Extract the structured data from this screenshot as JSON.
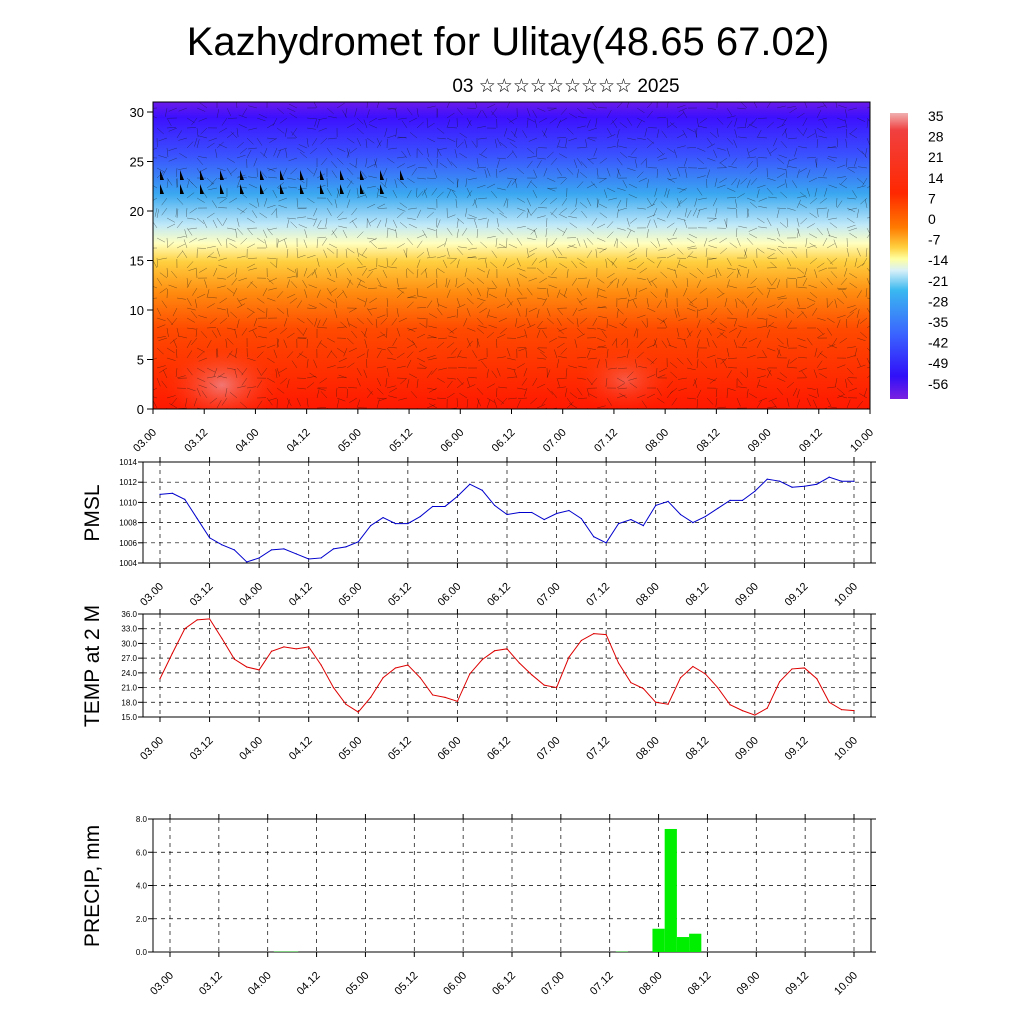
{
  "title": "Kazhydromet for Ulitay(48.65 67.02)",
  "subtitle": "03 ☆☆☆☆☆☆☆☆☆ 2025",
  "chart_data": [
    {
      "type": "heatmap",
      "name": "upper-air-temperature-section",
      "x_tick_labels": [
        "03.00",
        "03.12",
        "04.00",
        "04.12",
        "05.00",
        "05.12",
        "06.00",
        "06.12",
        "07.00",
        "07.12",
        "08.00",
        "08.12",
        "09.00",
        "09.12",
        "10.00"
      ],
      "ylim": [
        0,
        30
      ],
      "y_ticks": [
        0,
        5,
        10,
        15,
        20,
        25,
        30
      ],
      "colorbar_labels": [
        "35",
        "28",
        "21",
        "14",
        "7",
        "0",
        "-7",
        "-14",
        "-21",
        "-28",
        "-35",
        "-42",
        "-49",
        "-56"
      ],
      "colors": {
        "warm": "#ff2a00",
        "hot": "#f07070",
        "neutral": "#ffffc0",
        "cold": "#3aa8f0",
        "coldest": "#6a1ae8"
      }
    },
    {
      "type": "line",
      "ylabel": "PMSL",
      "ylim": [
        1004,
        1014
      ],
      "y_tick_labels": [
        "1004",
        "1006",
        "1008",
        "1010",
        "1012",
        "1014"
      ],
      "x_tick_labels": [
        "03.00",
        "03.12",
        "04.00",
        "04.12",
        "05.00",
        "05.12",
        "06.00",
        "06.12",
        "07.00",
        "07.12",
        "08.00",
        "08.12",
        "09.00",
        "09.12",
        "10.00"
      ],
      "x_step_hours": 3,
      "values": [
        1010.8,
        1010.9,
        1010.3,
        1008.4,
        1006.5,
        1005.8,
        1005.3,
        1004.1,
        1004.5,
        1005.3,
        1005.4,
        1004.9,
        1004.4,
        1004.5,
        1005.4,
        1005.6,
        1006.1,
        1007.7,
        1008.5,
        1007.9,
        1007.9,
        1008.6,
        1009.6,
        1009.6,
        1010.6,
        1011.8,
        1011.2,
        1009.7,
        1008.8,
        1009.0,
        1009.0,
        1008.3,
        1008.9,
        1009.2,
        1008.4,
        1006.6,
        1006.0,
        1007.9,
        1008.3,
        1007.7,
        1009.7,
        1010.1,
        1008.8,
        1008.0,
        1008.6,
        1009.4,
        1010.2,
        1010.2,
        1011.1,
        1012.3,
        1012.1,
        1011.5,
        1011.6,
        1011.8,
        1012.5,
        1012.1,
        1012.1
      ],
      "color": "#0000cc"
    },
    {
      "type": "line",
      "ylabel": "TEMP at 2 M",
      "ylim": [
        15,
        36
      ],
      "y_tick_labels": [
        "15.0",
        "18.0",
        "21.0",
        "24.0",
        "27.0",
        "30.0",
        "33.0",
        "36.0"
      ],
      "x_tick_labels": [
        "03.00",
        "03.12",
        "04.00",
        "04.12",
        "05.00",
        "05.12",
        "06.00",
        "06.12",
        "07.00",
        "07.12",
        "08.00",
        "08.12",
        "09.00",
        "09.12",
        "10.00"
      ],
      "x_step_hours": 3,
      "values": [
        22.8,
        28.0,
        33.0,
        34.8,
        35.0,
        31.0,
        26.8,
        25.2,
        24.6,
        28.4,
        29.3,
        28.9,
        29.3,
        25.6,
        21.0,
        17.6,
        16.0,
        19.0,
        23.0,
        25.0,
        25.6,
        23.0,
        19.5,
        19.0,
        18.2,
        23.8,
        26.7,
        28.5,
        28.9,
        26.0,
        23.6,
        21.5,
        21.0,
        27.2,
        30.6,
        32.0,
        31.8,
        26.0,
        22.0,
        20.8,
        18.0,
        17.6,
        23.0,
        25.3,
        23.8,
        21.0,
        17.5,
        16.3,
        15.4,
        16.8,
        22.2,
        24.8,
        25.0,
        22.8,
        18.0,
        16.5,
        16.3
      ],
      "color": "#dd0000"
    },
    {
      "type": "bar",
      "ylabel": "PRECIP, mm",
      "ylim": [
        0,
        8
      ],
      "y_tick_labels": [
        "0.0",
        "2.0",
        "4.0",
        "6.0",
        "8.0"
      ],
      "x_tick_labels": [
        "03.00",
        "03.12",
        "04.00",
        "04.12",
        "05.00",
        "05.12",
        "06.00",
        "06.12",
        "07.00",
        "07.12",
        "08.00",
        "08.12",
        "09.00",
        "09.12",
        "10.00"
      ],
      "x_step_hours": 3,
      "values": [
        0,
        0,
        0,
        0,
        0,
        0,
        0,
        0,
        0,
        0.02,
        0.02,
        0,
        0,
        0,
        0,
        0,
        0,
        0,
        0,
        0,
        0,
        0,
        0,
        0,
        0,
        0,
        0,
        0,
        0,
        0,
        0,
        0,
        0,
        0,
        0,
        0,
        0,
        0.02,
        0,
        0,
        1.4,
        7.4,
        0.9,
        1.1,
        0,
        0,
        0,
        0,
        0,
        0,
        0,
        0,
        0,
        0,
        0,
        0
      ],
      "color": "#00ee00"
    }
  ]
}
